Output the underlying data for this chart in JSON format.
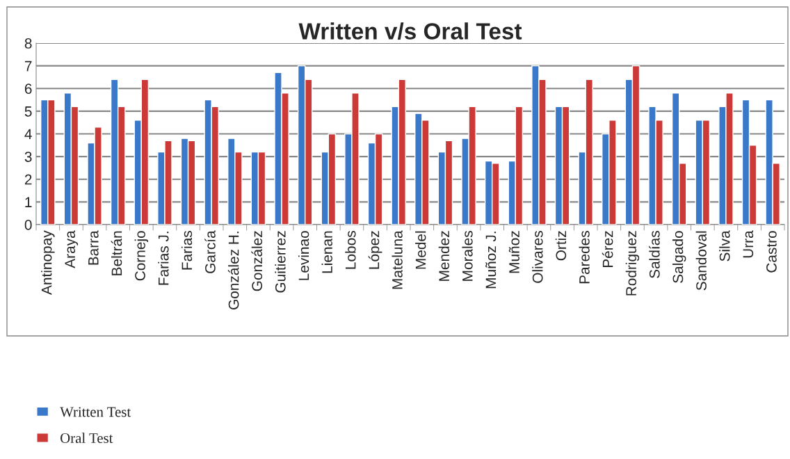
{
  "chart_data": {
    "type": "bar",
    "title": "Written v/s Oral Test",
    "categories": [
      "Antinopay",
      "Araya",
      "Barra",
      "Beltrán",
      "Cornejo",
      "Farias J.",
      "Farias",
      "García",
      "González H.",
      "González",
      "Guitierrez",
      "Levinao",
      "Lienan",
      "Lobos",
      "López",
      "Mateluna",
      "Medel",
      "Mendez",
      "Morales",
      "Muñoz J.",
      "Muñoz",
      "Olivares",
      "Ortiz",
      "Paredes",
      "Pérez",
      "Rodriguez",
      "Saldías",
      "Salgado",
      "Sandoval",
      "Silva",
      "Urra",
      "Castro"
    ],
    "series": [
      {
        "name": "Written Test",
        "color": "#3a78c9",
        "values": [
          5.5,
          5.8,
          3.6,
          6.4,
          4.6,
          3.2,
          3.8,
          5.5,
          3.8,
          3.2,
          6.7,
          7.0,
          3.2,
          4.0,
          3.6,
          5.2,
          4.9,
          3.2,
          3.8,
          2.8,
          2.8,
          7.0,
          5.2,
          3.2,
          4.0,
          6.4,
          5.2,
          5.8,
          4.6,
          5.2,
          5.5,
          5.5
        ]
      },
      {
        "name": "Oral Test",
        "color": "#cc3a38",
        "values": [
          5.5,
          5.2,
          4.3,
          5.2,
          6.4,
          3.7,
          3.7,
          5.2,
          3.2,
          3.2,
          5.8,
          6.4,
          4.0,
          5.8,
          4.0,
          6.4,
          4.6,
          3.7,
          5.2,
          2.7,
          5.2,
          6.4,
          5.2,
          6.4,
          4.6,
          7.0,
          4.6,
          2.7,
          4.6,
          5.8,
          3.5,
          2.7
        ]
      }
    ],
    "ylim": [
      0,
      8
    ],
    "yticks": [
      0,
      1,
      2,
      3,
      4,
      5,
      6,
      7,
      8
    ],
    "grid": "y",
    "legend": "bottom left"
  }
}
